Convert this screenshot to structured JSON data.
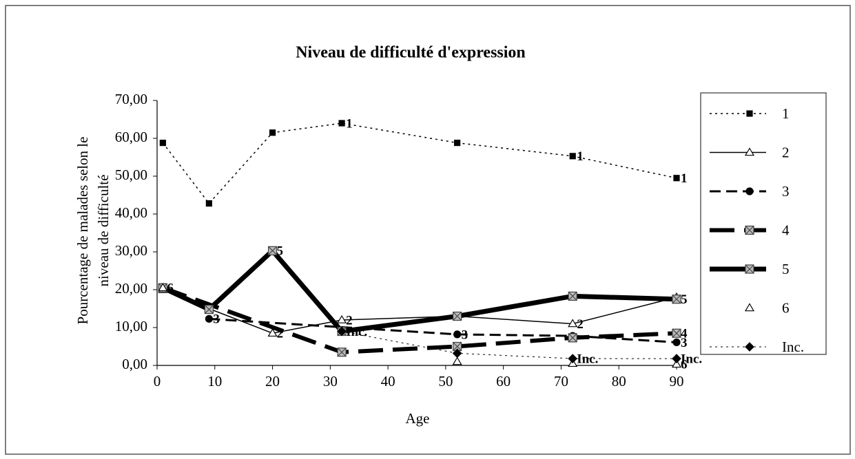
{
  "chart_data": {
    "type": "line",
    "title": "Niveau de difficulté d'expression",
    "xlabel": "Age",
    "ylabel": [
      "Pourcentage de malades selon le",
      "niveau de difficulté"
    ],
    "xlim": [
      0,
      90
    ],
    "ylim": [
      0,
      70
    ],
    "xticks": [
      0,
      10,
      20,
      30,
      40,
      50,
      60,
      70,
      80,
      90
    ],
    "yticks": [
      {
        "value": 0,
        "label": "0,00"
      },
      {
        "value": 10,
        "label": "10,00"
      },
      {
        "value": 20,
        "label": "20,00"
      },
      {
        "value": 30,
        "label": "30,00"
      },
      {
        "value": 40,
        "label": "40,00"
      },
      {
        "value": 50,
        "label": "50,00"
      },
      {
        "value": 60,
        "label": "60,00"
      },
      {
        "value": 70,
        "label": "70,00"
      }
    ],
    "grid": false,
    "legend": "right",
    "series": [
      {
        "name": "1",
        "color": "#000000",
        "line_style": "dotted",
        "line_width": 1.5,
        "marker": "square",
        "x": [
          1,
          9,
          20,
          32,
          52,
          72,
          90
        ],
        "values": [
          58.8,
          42.8,
          61.5,
          64,
          58.8,
          55.3,
          49.5
        ],
        "point_labels": [
          null,
          null,
          null,
          "1",
          null,
          "1",
          "1"
        ]
      },
      {
        "name": "2",
        "color": "#000000",
        "line_style": "solid",
        "line_width": 1.5,
        "marker": "triangle",
        "x": [
          1,
          9,
          20,
          32,
          52,
          72,
          90
        ],
        "values": [
          20,
          15,
          8.5,
          12,
          13,
          11,
          18
        ],
        "point_labels": [
          null,
          null,
          "2",
          "2",
          null,
          "2",
          null
        ]
      },
      {
        "name": "3",
        "color": "#000000",
        "line_style": "dashed",
        "line_width": 3,
        "marker": "circle",
        "x": [
          9,
          52,
          72,
          90
        ],
        "values": [
          12.3,
          8.2,
          7.8,
          6.1
        ],
        "point_labels": [
          "3",
          "3",
          null,
          "3"
        ]
      },
      {
        "name": "4",
        "color": "#000000",
        "line_style": "longdash",
        "line_width": 6,
        "marker": "x",
        "x": [
          1,
          32,
          52,
          72,
          90
        ],
        "values": [
          20.5,
          3.5,
          5,
          7.3,
          8.5
        ],
        "point_labels": [
          null,
          null,
          null,
          null,
          "4"
        ]
      },
      {
        "name": "5",
        "color": "#000000",
        "line_style": "solid",
        "line_width": 7,
        "marker": "x",
        "x": [
          1,
          9,
          20,
          32,
          52,
          72,
          90
        ],
        "values": [
          20.5,
          14.8,
          30.3,
          9,
          13,
          18.3,
          17.5
        ],
        "point_labels": [
          null,
          null,
          "5",
          null,
          null,
          null,
          "5"
        ]
      },
      {
        "name": "6",
        "color": "#000000",
        "line_style": "none",
        "line_width": 0,
        "marker": "triangle",
        "x": [
          1,
          52,
          72,
          90
        ],
        "values": [
          20.5,
          1,
          0.5,
          0.3
        ],
        "point_labels": [
          "6",
          null,
          null,
          "6"
        ]
      },
      {
        "name": "Inc.",
        "color": "#000000",
        "line_style": "dotted",
        "line_width": 1,
        "marker": "diamond",
        "x": [
          32,
          52,
          72,
          90
        ],
        "values": [
          9,
          3.2,
          1.8,
          1.8
        ],
        "point_labels": [
          "Inc.",
          null,
          "Inc.",
          "Inc."
        ]
      }
    ]
  }
}
